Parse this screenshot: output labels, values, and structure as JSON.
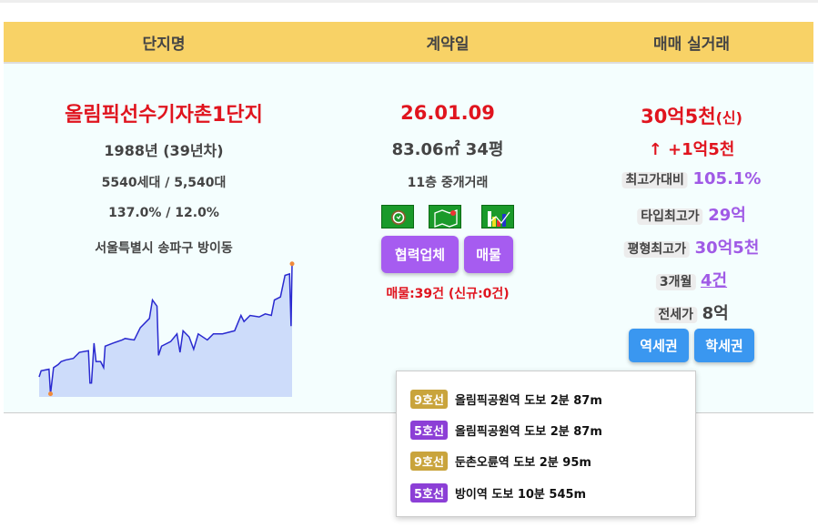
{
  "header": {
    "col1": "단지명",
    "col2": "계약일",
    "col3": "매매 실거래"
  },
  "complex": {
    "name": "올림픽선수기자촌1단지",
    "year": "1988년 (39년차)",
    "households": "5540세대 / 5,540대",
    "ratio": "137.0% / 12.0%",
    "address": "서울특별시 송파구 방이동"
  },
  "contract": {
    "date": "26.01.09",
    "area": "83.06㎡ 34평",
    "floor": "11층 중개거래",
    "icons": [
      "clock-icon",
      "map-icon",
      "chart-icon"
    ],
    "partner_button": "협력업체",
    "listing_button": "매물",
    "listing_count": "매물:39건 (신규:0건)"
  },
  "trade": {
    "price": "30억5천",
    "price_suffix": "(신)",
    "change": "↑ +1억5천",
    "stats": [
      {
        "label": "최고가대비",
        "value": "105.1%"
      },
      {
        "label": "타입최고가",
        "value": "29억"
      },
      {
        "label": "평형최고가",
        "value": "30억5천"
      },
      {
        "label": "3개월",
        "value": "4건"
      },
      {
        "label": "전세가",
        "value": "8억"
      }
    ],
    "station_button": "역세권",
    "school_button": "학세권"
  },
  "stations": [
    {
      "line": "9호선",
      "color": "#c9a43c",
      "text": "올림픽공원역  도보 2분  87m"
    },
    {
      "line": "5호선",
      "color": "#8c3fd6",
      "text": "올림픽공원역  도보 2분  87m"
    },
    {
      "line": "9호선",
      "color": "#c9a43c",
      "text": "둔촌오륜역  도보 2분  95m"
    },
    {
      "line": "5호선",
      "color": "#8c3fd6",
      "text": "방이역  도보 10분  545m"
    }
  ],
  "colors": {
    "header": "#f8d266",
    "price": "#e0141e",
    "accent": "#a05ae6",
    "button_blue": "#3a97f0",
    "line": "#2a2ad0",
    "fill": "#cddcfa"
  },
  "chart_data": {
    "type": "area",
    "points": [
      [
        0,
        21.7
      ],
      [
        0.8,
        28.3
      ],
      [
        3.9,
        30
      ],
      [
        4.5,
        3.3
      ],
      [
        5.7,
        31.7
      ],
      [
        7.5,
        35
      ],
      [
        8.7,
        38.3
      ],
      [
        10.5,
        40
      ],
      [
        13.5,
        41.7
      ],
      [
        15.9,
        48.3
      ],
      [
        19.5,
        50
      ],
      [
        20.1,
        15
      ],
      [
        20.7,
        15
      ],
      [
        21.7,
        58.3
      ],
      [
        22.5,
        38.3
      ],
      [
        24.3,
        38.3
      ],
      [
        25.5,
        31.7
      ],
      [
        26.1,
        55
      ],
      [
        29.2,
        58.3
      ],
      [
        32.8,
        61.7
      ],
      [
        34,
        63.3
      ],
      [
        37.6,
        61.7
      ],
      [
        40,
        75
      ],
      [
        42.4,
        81.7
      ],
      [
        43.6,
        85
      ],
      [
        44.8,
        105
      ],
      [
        46.6,
        98.3
      ],
      [
        47.2,
        45
      ],
      [
        48.4,
        55
      ],
      [
        52,
        60
      ],
      [
        54.5,
        68.3
      ],
      [
        55.7,
        48.3
      ],
      [
        56.9,
        71.7
      ],
      [
        59.3,
        65
      ],
      [
        61.1,
        51.7
      ],
      [
        62.9,
        68.3
      ],
      [
        66.5,
        61.7
      ],
      [
        68.9,
        68.3
      ],
      [
        72.5,
        68.3
      ],
      [
        77.3,
        71.7
      ],
      [
        79.8,
        88.3
      ],
      [
        81,
        81.7
      ],
      [
        83.4,
        88.3
      ],
      [
        87,
        86.7
      ],
      [
        89.4,
        90
      ],
      [
        91.8,
        88.3
      ],
      [
        93,
        105
      ],
      [
        95.4,
        108.3
      ],
      [
        97.2,
        131.7
      ],
      [
        99,
        133.3
      ],
      [
        99.6,
        76.7
      ],
      [
        100,
        144.3
      ]
    ]
  }
}
